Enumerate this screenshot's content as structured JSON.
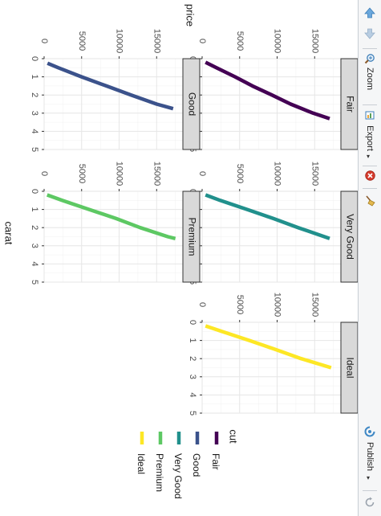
{
  "toolbar": {
    "zoom_label": "Zoom",
    "export_label": "Export",
    "publish_label": "Publish",
    "dropdown_caret": "▾"
  },
  "chart_data": {
    "type": "line",
    "xlabel": "carat",
    "ylabel": "price",
    "facet_by": "cut",
    "legend": {
      "title": "cut",
      "placement": "right",
      "entries": [
        "Fair",
        "Good",
        "Very Good",
        "Premium",
        "Ideal"
      ]
    },
    "xlim": [
      0,
      5
    ],
    "ylim": [
      0,
      18500
    ],
    "x_ticks": [
      0,
      1,
      2,
      3,
      4,
      5
    ],
    "y_ticks": [
      0,
      5000,
      10000,
      15000
    ],
    "grid": true,
    "colors": {
      "Fair": "#440154",
      "Good": "#3b528b",
      "Very Good": "#21908c",
      "Premium": "#5dc863",
      "Ideal": "#fde725"
    },
    "panels": [
      {
        "name": "Fair",
        "x": [
          0.2,
          0.5,
          1.0,
          1.5,
          2.0,
          2.5,
          3.0,
          3.3
        ],
        "y": [
          450,
          1900,
          4400,
          6700,
          9300,
          11800,
          14800,
          17000
        ]
      },
      {
        "name": "Good",
        "x": [
          0.25,
          0.5,
          1.0,
          1.5,
          2.0,
          2.5,
          2.75
        ],
        "y": [
          450,
          1900,
          5000,
          8300,
          11600,
          15000,
          17200
        ]
      },
      {
        "name": "Very Good",
        "x": [
          0.2,
          0.5,
          1.0,
          1.5,
          2.0,
          2.6
        ],
        "y": [
          450,
          2400,
          6000,
          9500,
          12800,
          17000
        ]
      },
      {
        "name": "Premium",
        "x": [
          0.2,
          0.5,
          1.0,
          1.5,
          2.0,
          2.5,
          2.6
        ],
        "y": [
          400,
          2400,
          6000,
          9600,
          12800,
          16500,
          17500
        ]
      },
      {
        "name": "Ideal",
        "x": [
          0.2,
          0.5,
          1.0,
          1.5,
          2.0,
          2.5
        ],
        "y": [
          450,
          2600,
          6300,
          9800,
          13200,
          17200
        ]
      }
    ]
  }
}
